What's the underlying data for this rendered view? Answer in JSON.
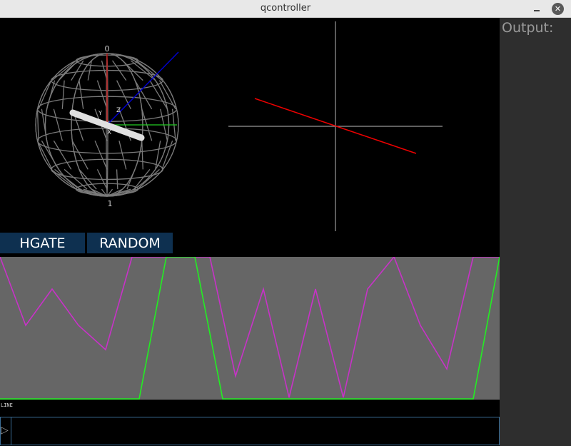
{
  "window": {
    "title": "qcontroller",
    "minimize_icon": "minimize-icon",
    "close_icon": "close-icon",
    "close_glyph": "✕"
  },
  "bloch_sphere": {
    "top_label": "0",
    "bottom_label": "1",
    "axis_z_label": "Z",
    "axis_x_label": "X",
    "axis_y_label": "Y",
    "colors": {
      "wireframe": "#7a7a7a",
      "z_axis": "#cc0000",
      "state_vector": "#0000cc",
      "y_axis": "#22cc22",
      "x_axis": "#ffffff"
    }
  },
  "phase_plot": {
    "colors": {
      "axes": "#9a9a9a",
      "vector": "#ee0000"
    }
  },
  "controls": {
    "hgate_label": "HGATE",
    "random_label": "RANDOM"
  },
  "scope": {
    "background": "#666666",
    "caption": "LINE",
    "magenta_color": "#c832c8",
    "green_color": "#22ee22"
  },
  "output_panel": {
    "label": "Output:"
  },
  "console": {
    "prompt_glyph": "▷",
    "input_value": ""
  }
}
